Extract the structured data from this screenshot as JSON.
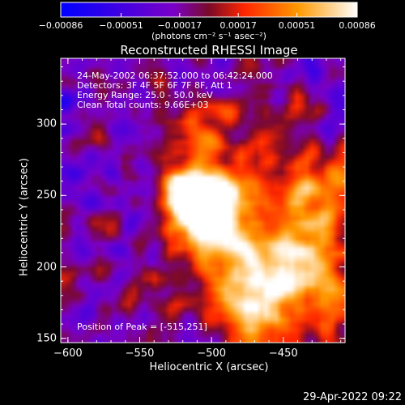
{
  "chart_data": {
    "type": "heatmap",
    "title": "Reconstructed RHESSI Image",
    "xlabel": "Heliocentric X (arcsec)",
    "ylabel": "Heliocentric Y (arcsec)",
    "xlim": [
      -605,
      -407
    ],
    "ylim": [
      147,
      346
    ],
    "xticks": [
      -600,
      -550,
      -500,
      -450
    ],
    "yticks": [
      150,
      200,
      250,
      300
    ],
    "colorbar": {
      "ticks": [
        "-0.00086",
        "-0.00051",
        "-0.00017",
        "0.00017",
        "0.00051",
        "0.00086"
      ],
      "min": -0.00086,
      "max": 0.00086,
      "unit": "(photons cm⁻² s⁻¹ asec⁻²)",
      "colors": [
        "#0000ff",
        "#7a00c8",
        "#7a0a28",
        "#ff2600",
        "#ff9900",
        "#ffffff"
      ]
    },
    "annotations": [
      "24-May-2002 06:37:52.000 to 06:42:24.000",
      "Detectors: 3F 4F 5F 6F 7F 8F, Att 1",
      "Energy Range: 25.0 - 50.0 keV",
      "Clean     Total counts: 9.66E+03"
    ],
    "peak_label": "Position of Peak = [-515,251]",
    "peak": [
      -515,
      251
    ]
  },
  "footer": "29-Apr-2022 09:22"
}
